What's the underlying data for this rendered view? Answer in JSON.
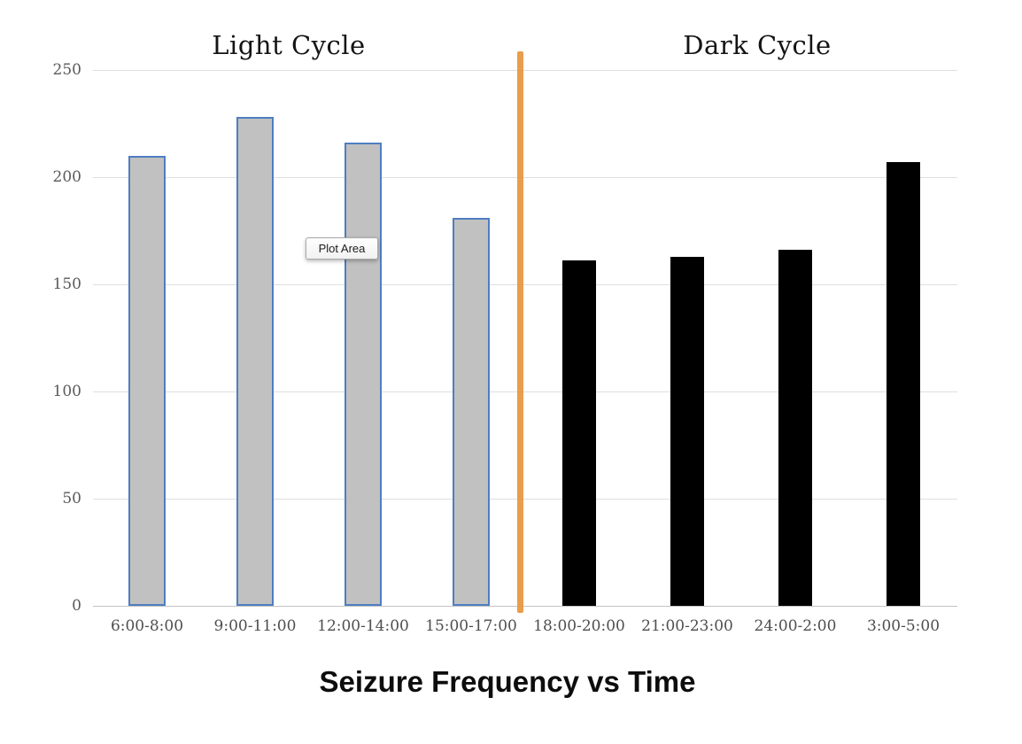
{
  "tooltip": {
    "label": "Plot Area"
  },
  "chart_data": {
    "type": "bar",
    "title": "Seizure Frequency vs Time",
    "section_labels": {
      "light": "Light Cycle",
      "dark": "Dark Cycle"
    },
    "categories": [
      "6:00-8:00",
      "9:00-11:00",
      "12:00-14:00",
      "15:00-17:00",
      "18:00-20:00",
      "21:00-23:00",
      "24:00-2:00",
      "3:00-5:00"
    ],
    "values": [
      210,
      228,
      216,
      181,
      161,
      163,
      166,
      207
    ],
    "series": [
      {
        "name": "Light Cycle",
        "categories": [
          "6:00-8:00",
          "9:00-11:00",
          "12:00-14:00",
          "15:00-17:00"
        ],
        "values": [
          210,
          228,
          216,
          181
        ],
        "bar_fill": "#c1c1c1",
        "bar_border": "#4e7ec1"
      },
      {
        "name": "Dark Cycle",
        "categories": [
          "18:00-20:00",
          "21:00-23:00",
          "24:00-2:00",
          "3:00-5:00"
        ],
        "values": [
          161,
          163,
          166,
          207
        ],
        "bar_fill": "#000000",
        "bar_border": "#000000"
      }
    ],
    "xlabel": "",
    "ylabel": "",
    "ylim": [
      0,
      250
    ],
    "yticks": [
      0,
      50,
      100,
      150,
      200,
      250
    ],
    "grid": true,
    "legend": "none",
    "divider_color": "#e8963c",
    "colors": {
      "grid": "#dfdfdf",
      "axis_line": "#c4c4c4",
      "tick_label": "#5a5a5a",
      "section_label": "#141414",
      "title": "#0d0d0d",
      "light_bar_fill": "#c1c1c1",
      "light_bar_border": "#4e7ec1",
      "dark_bar_fill": "#000000",
      "divider": "#e8963c"
    }
  }
}
